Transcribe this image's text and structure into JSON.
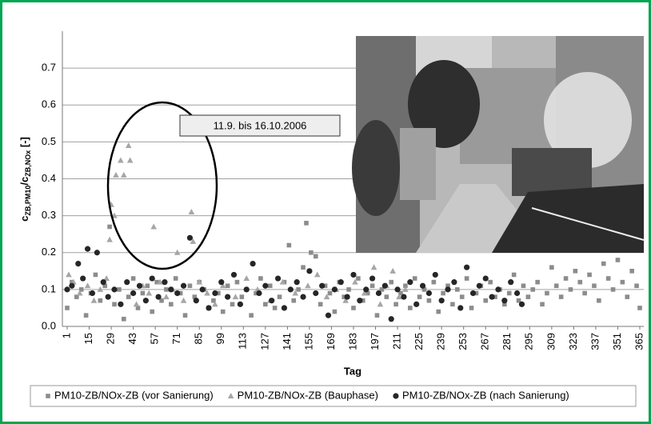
{
  "chart_data": {
    "type": "scatter",
    "ylabel": [
      "c",
      "ZB,PM10",
      "/c",
      "ZB,NOx",
      " [-]"
    ],
    "xlabel": "Tag",
    "annotation": "11.9. bis 16.10.2006",
    "xlim": [
      1,
      365
    ],
    "xticks": [
      1,
      15,
      29,
      43,
      57,
      71,
      85,
      99,
      113,
      127,
      141,
      155,
      169,
      183,
      197,
      211,
      225,
      239,
      253,
      267,
      281,
      295,
      309,
      323,
      337,
      351,
      365
    ],
    "ylim": [
      0,
      0.8
    ],
    "yticks": [
      {
        "value": 0,
        "label": "0.0"
      },
      0.1,
      0.2,
      0.3,
      0.4,
      0.5,
      0.6,
      0.7
    ],
    "grid": true,
    "legend": "bottom",
    "series": [
      {
        "name": "PM10-ZB/NOx-ZB (vor Sanierung)",
        "color": "#8c8c8c",
        "marker": "square",
        "x": [
          1,
          4,
          7,
          10,
          13,
          16,
          19,
          22,
          25,
          28,
          31,
          34,
          37,
          40,
          43,
          46,
          49,
          52,
          55,
          58,
          61,
          64,
          67,
          70,
          73,
          76,
          79,
          82,
          85,
          88,
          91,
          94,
          97,
          100,
          103,
          106,
          109,
          112,
          115,
          118,
          121,
          124,
          127,
          130,
          133,
          136,
          139,
          142,
          145,
          148,
          151,
          153,
          156,
          159,
          162,
          165,
          168,
          171,
          174,
          177,
          180,
          183,
          186,
          189,
          192,
          195,
          198,
          201,
          204,
          207,
          210,
          213,
          216,
          219,
          222,
          225,
          228,
          231,
          234,
          237,
          240,
          243,
          246,
          249,
          252,
          255,
          258,
          261,
          264,
          267,
          270,
          273,
          276,
          279,
          282,
          285,
          288,
          291,
          294,
          297,
          300,
          303,
          306,
          309,
          312,
          315,
          318,
          321,
          324,
          327,
          330,
          333,
          336,
          339,
          342,
          345,
          348,
          351,
          354,
          357,
          360,
          363,
          365
        ],
        "values": [
          0.05,
          0.12,
          0.08,
          0.1,
          0.03,
          0.09,
          0.14,
          0.07,
          0.11,
          0.27,
          0.06,
          0.1,
          0.02,
          0.08,
          0.13,
          0.05,
          0.09,
          0.11,
          0.04,
          0.12,
          0.07,
          0.1,
          0.06,
          0.13,
          0.09,
          0.03,
          0.11,
          0.08,
          0.12,
          0.1,
          0.05,
          0.07,
          0.09,
          0.04,
          0.11,
          0.06,
          0.12,
          0.08,
          0.1,
          0.03,
          0.09,
          0.13,
          0.06,
          0.11,
          0.05,
          0.08,
          0.12,
          0.22,
          0.07,
          0.1,
          0.16,
          0.28,
          0.2,
          0.19,
          0.06,
          0.11,
          0.09,
          0.04,
          0.12,
          0.08,
          0.1,
          0.05,
          0.13,
          0.07,
          0.09,
          0.11,
          0.03,
          0.1,
          0.08,
          0.12,
          0.06,
          0.09,
          0.11,
          0.05,
          0.13,
          0.08,
          0.1,
          0.07,
          0.12,
          0.04,
          0.09,
          0.11,
          0.06,
          0.1,
          0.08,
          0.13,
          0.05,
          0.09,
          0.11,
          0.07,
          0.12,
          0.08,
          0.1,
          0.06,
          0.09,
          0.14,
          0.07,
          0.11,
          0.08,
          0.1,
          0.12,
          0.06,
          0.09,
          0.16,
          0.11,
          0.08,
          0.13,
          0.1,
          0.15,
          0.12,
          0.09,
          0.14,
          0.11,
          0.07,
          0.17,
          0.13,
          0.1,
          0.18,
          0.12,
          0.08,
          0.15,
          0.11,
          0.05
        ]
      },
      {
        "name": "PM10-ZB/NOx-ZB (Bauphase)",
        "color": "#a6a6a6",
        "marker": "triangle",
        "x": [
          2,
          5,
          9,
          14,
          18,
          22,
          26,
          28,
          29,
          31,
          32,
          35,
          37,
          40,
          41,
          45,
          49,
          53,
          56,
          60,
          64,
          68,
          71,
          75,
          80,
          81,
          85,
          90,
          95,
          100,
          108,
          115,
          122,
          130,
          138,
          146,
          154,
          160,
          166,
          172,
          178,
          184,
          190,
          196,
          200,
          204,
          208,
          212,
          216
        ],
        "values": [
          0.14,
          0.12,
          0.09,
          0.11,
          0.07,
          0.1,
          0.13,
          0.235,
          0.33,
          0.3,
          0.41,
          0.45,
          0.41,
          0.49,
          0.45,
          0.06,
          0.11,
          0.09,
          0.27,
          0.12,
          0.08,
          0.1,
          0.2,
          0.07,
          0.31,
          0.23,
          0.12,
          0.09,
          0.06,
          0.11,
          0.08,
          0.13,
          0.1,
          0.07,
          0.12,
          0.09,
          0.11,
          0.14,
          0.08,
          0.1,
          0.07,
          0.12,
          0.09,
          0.16,
          0.06,
          0.11,
          0.15,
          0.08,
          0.1
        ]
      },
      {
        "name": "PM10-ZB/NOx-ZB (nach Sanierung)",
        "color": "#262626",
        "marker": "circle",
        "x": [
          1,
          4,
          8,
          11,
          14,
          17,
          20,
          24,
          27,
          31,
          35,
          39,
          43,
          47,
          51,
          55,
          59,
          63,
          67,
          71,
          75,
          79,
          83,
          87,
          91,
          95,
          99,
          103,
          107,
          111,
          115,
          119,
          123,
          127,
          131,
          135,
          139,
          143,
          147,
          151,
          155,
          159,
          163,
          167,
          171,
          175,
          179,
          183,
          187,
          191,
          195,
          199,
          203,
          207,
          211,
          215,
          219,
          223,
          227,
          231,
          235,
          239,
          243,
          247,
          251,
          255,
          259,
          263,
          267,
          271,
          275,
          279,
          283,
          287,
          290
        ],
        "values": [
          0.1,
          0.11,
          0.17,
          0.13,
          0.21,
          0.09,
          0.2,
          0.12,
          0.08,
          0.1,
          0.06,
          0.12,
          0.09,
          0.11,
          0.07,
          0.13,
          0.08,
          0.12,
          0.1,
          0.09,
          0.11,
          0.24,
          0.07,
          0.1,
          0.05,
          0.09,
          0.12,
          0.08,
          0.14,
          0.06,
          0.1,
          0.17,
          0.09,
          0.11,
          0.07,
          0.13,
          0.05,
          0.1,
          0.12,
          0.08,
          0.15,
          0.09,
          0.11,
          0.03,
          0.1,
          0.12,
          0.08,
          0.14,
          0.07,
          0.1,
          0.13,
          0.09,
          0.11,
          0.02,
          0.1,
          0.08,
          0.12,
          0.06,
          0.11,
          0.09,
          0.14,
          0.07,
          0.1,
          0.12,
          0.05,
          0.16,
          0.09,
          0.11,
          0.13,
          0.08,
          0.1,
          0.07,
          0.12,
          0.09,
          0.06
        ]
      }
    ]
  }
}
